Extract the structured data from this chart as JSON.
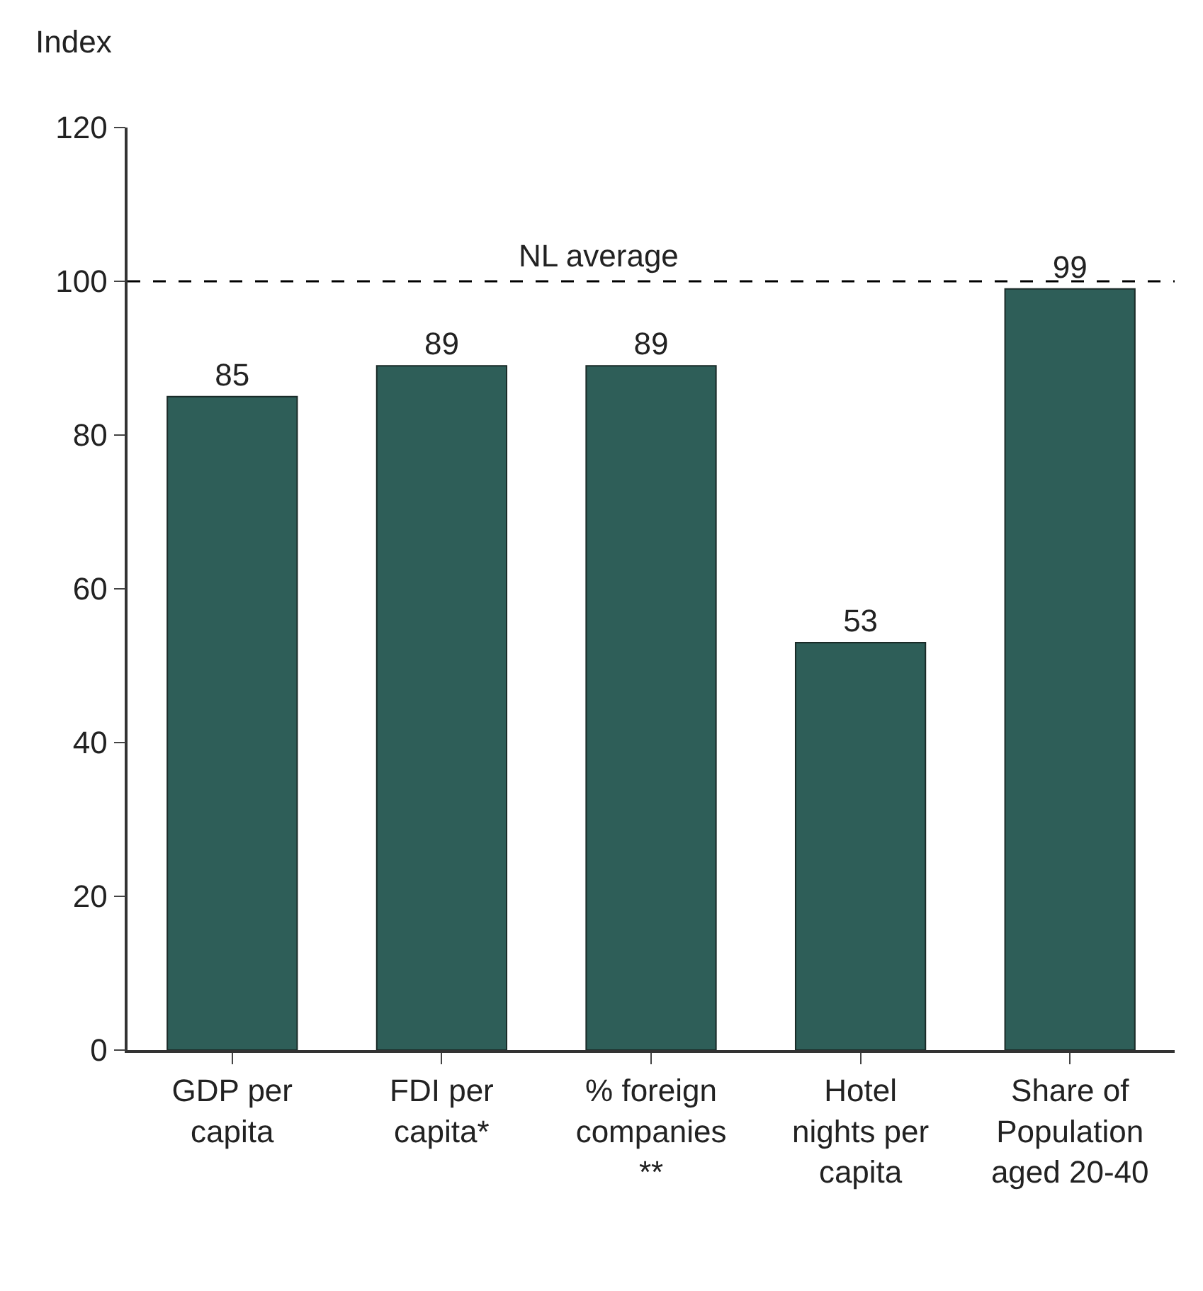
{
  "chart_data": {
    "type": "bar",
    "ylabel": "Index",
    "categories": [
      "GDP per capita",
      "FDI per capita*",
      "% foreign companies **",
      "Hotel nights per capita",
      "Share of Population aged 20-40"
    ],
    "values": [
      85,
      89,
      89,
      53,
      99
    ],
    "color": "#2e5e58",
    "data_labels": true,
    "ylim": [
      0,
      120
    ],
    "yticks": [
      0,
      20,
      40,
      60,
      80,
      100,
      120
    ],
    "ref_lines": [
      {
        "axis": "y",
        "value": 100,
        "label": "NL average",
        "color": "#000000",
        "line_style": "dashed"
      }
    ]
  }
}
